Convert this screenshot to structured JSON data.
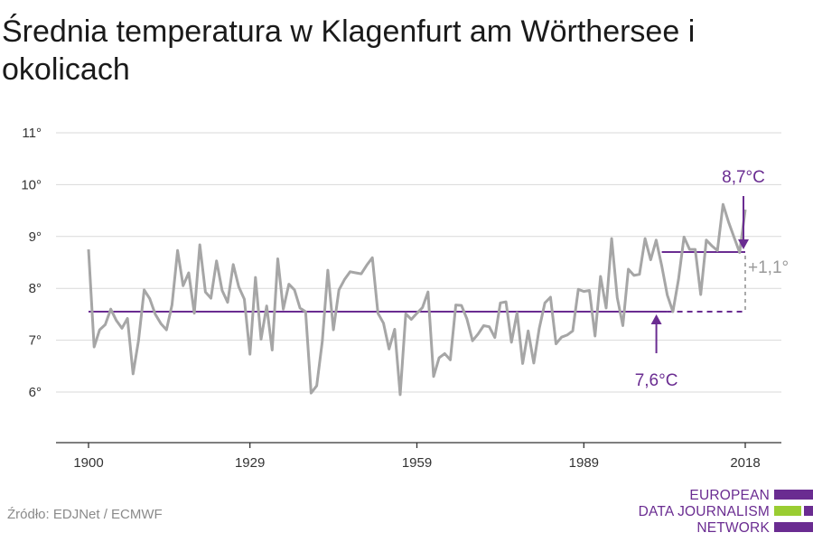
{
  "title": "Średnia temperatura w Klagenfurt am Wörthersee i okolicach",
  "source": "Źródło: EDJNet / ECMWF",
  "logo": {
    "lines": [
      "EUROPEAN",
      "DATA JOURNALISM",
      "NETWORK"
    ],
    "colors": {
      "purple": "#6a2c91",
      "green": "#9acd32"
    }
  },
  "colors": {
    "series": "#a6a6a6",
    "baseline": "#6a2c91",
    "grid": "#d9d9d9",
    "axis": "#333333"
  },
  "chart_data": {
    "type": "line",
    "title": "Średnia temperatura w Klagenfurt am Wörthersee i okolicach",
    "xlim": [
      1900,
      2018
    ],
    "ylim": [
      5,
      11
    ],
    "y_ticks": [
      6,
      7,
      8,
      9,
      10,
      11
    ],
    "y_tick_labels": [
      "6°",
      "7°",
      "8°",
      "9°",
      "10°",
      "11°"
    ],
    "x_ticks": [
      1900,
      1929,
      1959,
      1989,
      2018
    ],
    "x_tick_labels": [
      "1900",
      "1929",
      "1959",
      "1989",
      "2018"
    ],
    "grid": true,
    "series": [
      {
        "x": [
          1900,
          1901,
          1902,
          1903,
          1904,
          1905,
          1906,
          1907,
          1908,
          1909,
          1910,
          1911,
          1912,
          1913,
          1914,
          1915,
          1916,
          1917,
          1918,
          1919,
          1920,
          1921,
          1922,
          1923,
          1924,
          1925,
          1926,
          1927,
          1928,
          1929,
          1930,
          1931,
          1932,
          1933,
          1934,
          1935,
          1936,
          1937,
          1938,
          1939,
          1940,
          1941,
          1942,
          1943,
          1944,
          1945,
          1946,
          1947,
          1948,
          1949,
          1950,
          1951,
          1952,
          1953,
          1954,
          1955,
          1956,
          1957,
          1958,
          1959,
          1960,
          1961,
          1962,
          1963,
          1964,
          1965,
          1966,
          1967,
          1968,
          1969,
          1970,
          1971,
          1972,
          1973,
          1974,
          1975,
          1976,
          1977,
          1978,
          1979,
          1980,
          1981,
          1982,
          1983,
          1984,
          1985,
          1986,
          1987,
          1988,
          1989,
          1990,
          1991,
          1992,
          1993,
          1994,
          1995,
          1996,
          1997,
          1998,
          1999,
          2000,
          2001,
          2002,
          2003,
          2004,
          2005,
          2006,
          2007,
          2008,
          2009,
          2010,
          2011,
          2012,
          2013,
          2014,
          2015,
          2016,
          2017,
          2018
        ],
        "values": [
          8.75,
          6.87,
          7.2,
          7.3,
          7.6,
          7.38,
          7.23,
          7.42,
          6.35,
          7.0,
          7.97,
          7.8,
          7.5,
          7.32,
          7.2,
          7.68,
          8.73,
          8.05,
          8.3,
          7.52,
          8.84,
          7.93,
          7.81,
          8.53,
          7.96,
          7.73,
          8.46,
          8.03,
          7.79,
          6.73,
          8.21,
          7.02,
          7.66,
          6.81,
          8.57,
          7.6,
          8.08,
          7.97,
          7.62,
          7.55,
          5.98,
          6.12,
          6.98,
          8.35,
          7.2,
          7.97,
          8.17,
          8.32,
          8.3,
          8.28,
          8.45,
          8.59,
          7.52,
          7.33,
          6.83,
          7.21,
          5.95,
          7.51,
          7.4,
          7.52,
          7.63,
          7.93,
          6.3,
          6.66,
          6.74,
          6.62,
          7.68,
          7.67,
          7.41,
          6.99,
          7.12,
          7.28,
          7.26,
          7.05,
          7.72,
          7.74,
          6.96,
          7.53,
          6.55,
          7.18,
          6.56,
          7.23,
          7.72,
          7.83,
          6.93,
          7.06,
          7.1,
          7.18,
          7.98,
          7.94,
          7.96,
          7.08,
          8.23,
          7.62,
          8.96,
          7.82,
          7.28,
          8.37,
          8.25,
          8.27,
          8.96,
          8.55,
          8.93,
          8.43,
          7.87,
          7.55,
          8.17,
          8.99,
          8.75,
          8.75,
          7.88,
          8.93,
          8.82,
          8.73,
          9.62,
          9.28,
          8.98,
          8.69,
          9.52
        ]
      }
    ],
    "baseline": {
      "from": 1900,
      "to": 2018,
      "value": 7.55,
      "label": "7,6°C",
      "label_year": 2003
    },
    "recent": {
      "from": 2003,
      "to": 2018,
      "value": 8.7,
      "label": "8,7°C"
    },
    "difference": {
      "label": "+1,1°"
    }
  }
}
